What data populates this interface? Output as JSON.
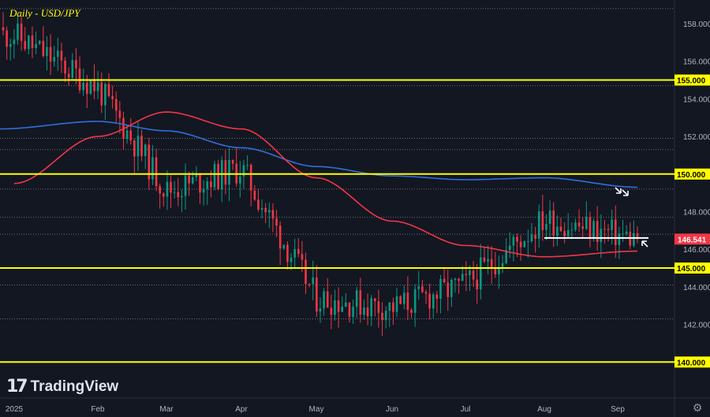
{
  "chart_data": {
    "type": "candlestick",
    "title": "Daily - USD/JPY",
    "ylim": [
      138.3,
      159.6
    ],
    "yticks": [
      158.0,
      156.0,
      154.0,
      152.0,
      150.0,
      148.0,
      146.0,
      144.0,
      142.0,
      140.0
    ],
    "ytick_labels": [
      "158.000",
      "156.000",
      "154.000",
      "152.000",
      "150.000",
      "148.000",
      "146.000",
      "144.000",
      "142.000",
      "140.000"
    ],
    "xtick_labels": [
      "2025",
      "Feb",
      "Mar",
      "Apr",
      "May",
      "Jun",
      "Jul",
      "Aug",
      "Sep"
    ],
    "last_price": 146.541,
    "last_price_label": "146.541",
    "horizontal_levels": [
      {
        "value": 155.0,
        "label": "155.000",
        "color": "#ffff00",
        "style": "solid"
      },
      {
        "value": 150.0,
        "label": "150.000",
        "color": "#ffff00",
        "style": "solid"
      },
      {
        "value": 145.0,
        "label": "145.000",
        "color": "#ffff00",
        "style": "solid"
      },
      {
        "value": 140.0,
        "label": "140.000",
        "color": "#ffff00",
        "style": "solid"
      }
    ],
    "dotted_levels": [
      158.8,
      154.7,
      151.9,
      151.3,
      149.2,
      147.7,
      146.8,
      144.1,
      142.3
    ],
    "support_line": {
      "value": 146.6,
      "from_x": "Aug",
      "color": "#ffffff"
    },
    "moving_averages": [
      {
        "name": "MA blue",
        "color": "#2f6fdb",
        "x": [
          "2025",
          "Feb",
          "Mar",
          "Apr",
          "May",
          "Jun",
          "Jul",
          "Aug",
          "Sep"
        ],
        "values": [
          152.4,
          152.8,
          152.3,
          151.4,
          150.4,
          149.9,
          149.7,
          149.8,
          149.3
        ]
      },
      {
        "name": "MA red",
        "color": "#f23645",
        "x": [
          "2025",
          "Feb",
          "Mar",
          "Apr",
          "May",
          "Jun",
          "Jul",
          "Aug",
          "Sep"
        ],
        "values": [
          149.5,
          152.0,
          153.3,
          152.4,
          149.8,
          147.5,
          146.2,
          145.6,
          145.9
        ]
      }
    ],
    "price_path": {
      "x": [
        "2025",
        "Feb",
        "Mar",
        "Apr",
        "May",
        "Jun",
        "Jul",
        "Aug",
        "Sep"
      ],
      "close": [
        157.4,
        154.6,
        149.1,
        150.3,
        143.4,
        142.9,
        144.1,
        147.6,
        146.541
      ]
    },
    "candle_count": 175,
    "up_color": "#089981",
    "down_color": "#f23645",
    "arrows": [
      "white arrow pointing at Sep high",
      "white arrow pointing at last candle"
    ],
    "grid": false
  },
  "branding": {
    "name": "TradingView"
  },
  "icons": {
    "settings": "gear-icon",
    "logo": "tradingview-logo-icon"
  }
}
